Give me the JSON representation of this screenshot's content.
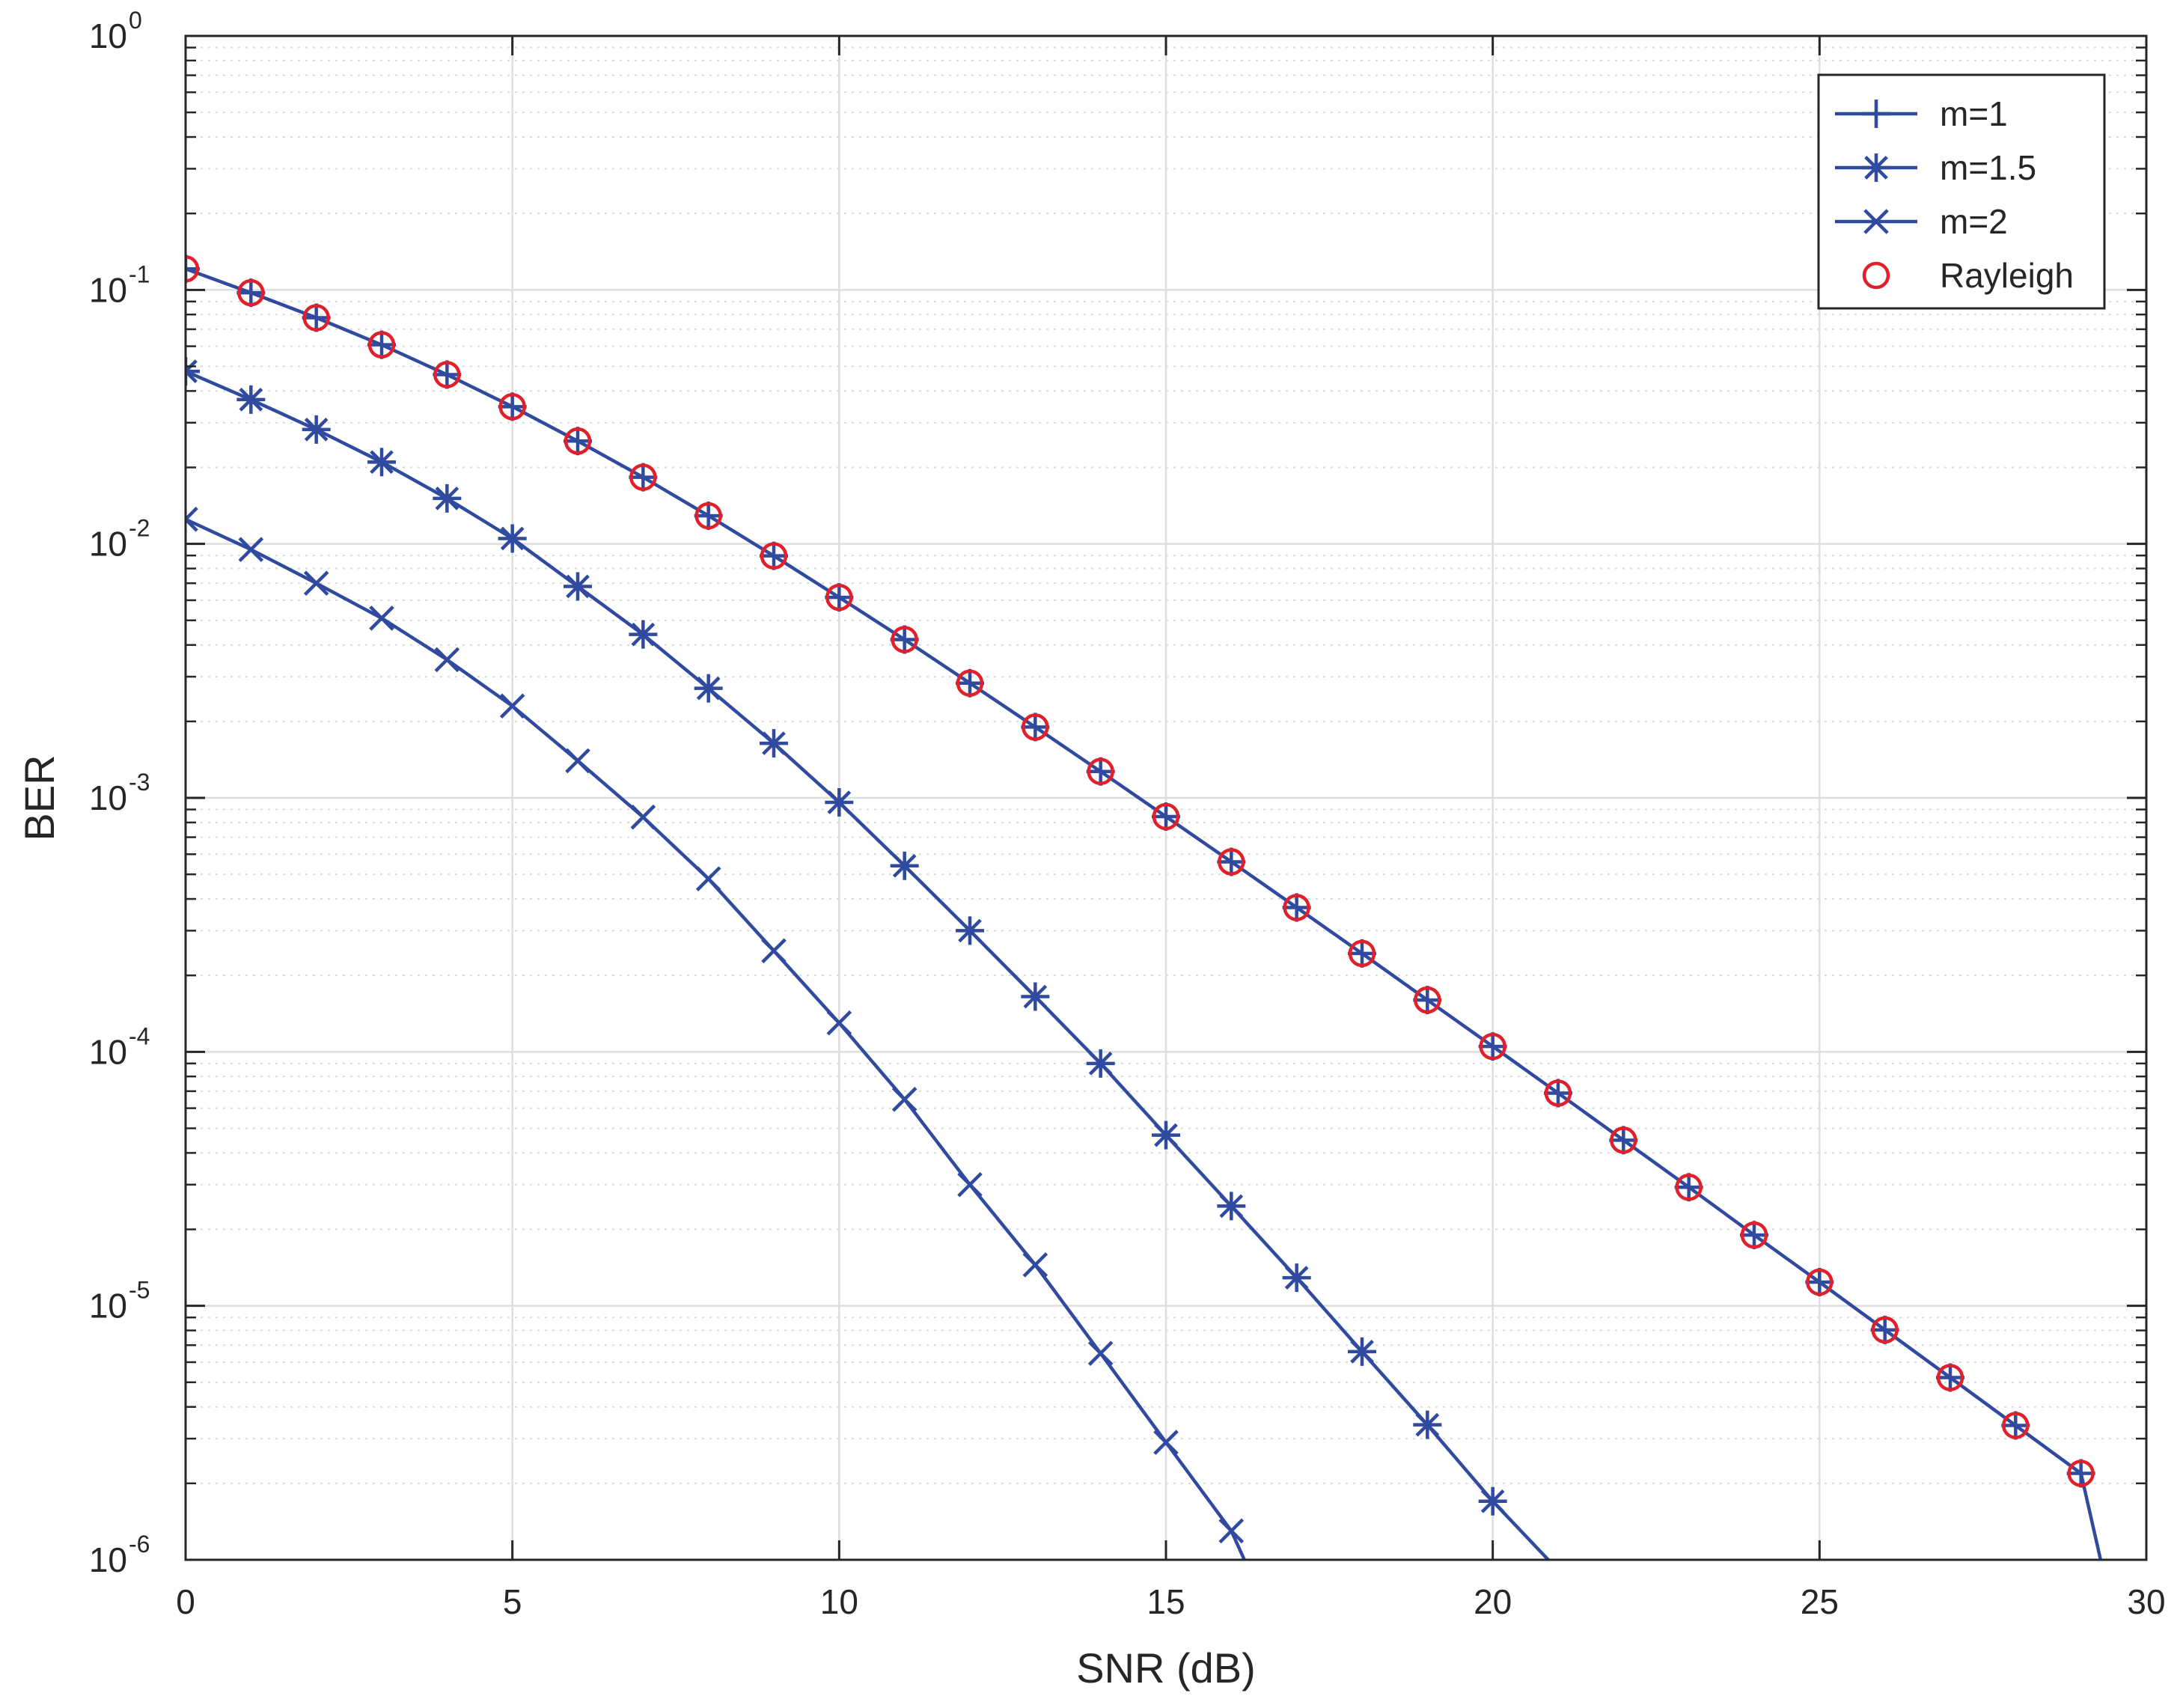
{
  "chart_data": {
    "type": "line",
    "xlabel": "SNR (dB)",
    "ylabel": "BER",
    "xlim": [
      0,
      30
    ],
    "ylim": [
      1e-06,
      1
    ],
    "yscale": "log",
    "grid": true,
    "minor_grid": true,
    "legend_position": "top-right",
    "x_ticks": [
      "0",
      "5",
      "10",
      "15",
      "20",
      "25",
      "30"
    ],
    "y_ticks": [
      {
        "base": "10",
        "exp": "-6"
      },
      {
        "base": "10",
        "exp": "-5"
      },
      {
        "base": "10",
        "exp": "-4"
      },
      {
        "base": "10",
        "exp": "-3"
      },
      {
        "base": "10",
        "exp": "-2"
      },
      {
        "base": "10",
        "exp": "-1"
      },
      {
        "base": "10",
        "exp": "0"
      }
    ],
    "series": [
      {
        "name": "m=1",
        "color": "#2f4a9e",
        "marker": "plus",
        "x": [
          0,
          1,
          2,
          3,
          4,
          5,
          6,
          7,
          8,
          9,
          10,
          11,
          12,
          13,
          14,
          15,
          16,
          17,
          18,
          19,
          20,
          21,
          22,
          23,
          24,
          25,
          26,
          27,
          28,
          29,
          29.3
        ],
        "y": [
          0.121,
          0.0975,
          0.0777,
          0.0608,
          0.0464,
          0.0347,
          0.0254,
          0.0183,
          0.0129,
          0.00897,
          0.00616,
          0.0042,
          0.00283,
          0.0019,
          0.00127,
          0.000844,
          0.00056,
          0.00037,
          0.000244,
          0.00016,
          0.000105,
          6.88e-05,
          4.49e-05,
          2.93e-05,
          1.9e-05,
          1.24e-05,
          8.04e-06,
          5.22e-06,
          3.38e-06,
          2.19e-06,
          1e-06
        ]
      },
      {
        "name": "m=1.5",
        "color": "#2f4a9e",
        "marker": "asterisk",
        "x": [
          0,
          1,
          2,
          3,
          4,
          5,
          6,
          7,
          8,
          9,
          10,
          11,
          12,
          13,
          14,
          15,
          16,
          17,
          18,
          19,
          20,
          20.85
        ],
        "y": [
          0.0478,
          0.037,
          0.0282,
          0.021,
          0.0151,
          0.0105,
          0.0068,
          0.0044,
          0.0027,
          0.00164,
          0.00096,
          0.00054,
          0.0003,
          0.000165,
          9e-05,
          4.7e-05,
          2.47e-05,
          1.29e-05,
          6.6e-06,
          3.4e-06,
          1.7e-06,
          1e-06
        ]
      },
      {
        "name": "m=2",
        "color": "#2f4a9e",
        "marker": "x",
        "x": [
          0,
          1,
          2,
          3,
          4,
          5,
          6,
          7,
          8,
          9,
          10,
          11,
          12,
          13,
          14,
          15,
          16,
          16.2
        ],
        "y": [
          0.0125,
          0.0095,
          0.007,
          0.0051,
          0.0035,
          0.0023,
          0.0014,
          0.00084,
          0.00048,
          0.00025,
          0.00013,
          6.5e-05,
          3e-05,
          1.45e-05,
          6.5e-06,
          2.9e-06,
          1.3e-06,
          1e-06
        ]
      },
      {
        "name": "Rayleigh",
        "color": "#e0202a",
        "marker": "circle",
        "line": false,
        "x": [
          0,
          1,
          2,
          3,
          4,
          5,
          6,
          7,
          8,
          9,
          10,
          11,
          12,
          13,
          14,
          15,
          16,
          17,
          18,
          19,
          20,
          21,
          22,
          23,
          24,
          25,
          26,
          27,
          28,
          29
        ],
        "y": [
          0.121,
          0.0975,
          0.0777,
          0.0608,
          0.0464,
          0.0347,
          0.0254,
          0.0183,
          0.0129,
          0.00897,
          0.00616,
          0.0042,
          0.00283,
          0.0019,
          0.00127,
          0.000844,
          0.00056,
          0.00037,
          0.000244,
          0.00016,
          0.000105,
          6.88e-05,
          4.49e-05,
          2.93e-05,
          1.9e-05,
          1.24e-05,
          8.04e-06,
          5.22e-06,
          3.38e-06,
          2.19e-06
        ]
      }
    ]
  }
}
